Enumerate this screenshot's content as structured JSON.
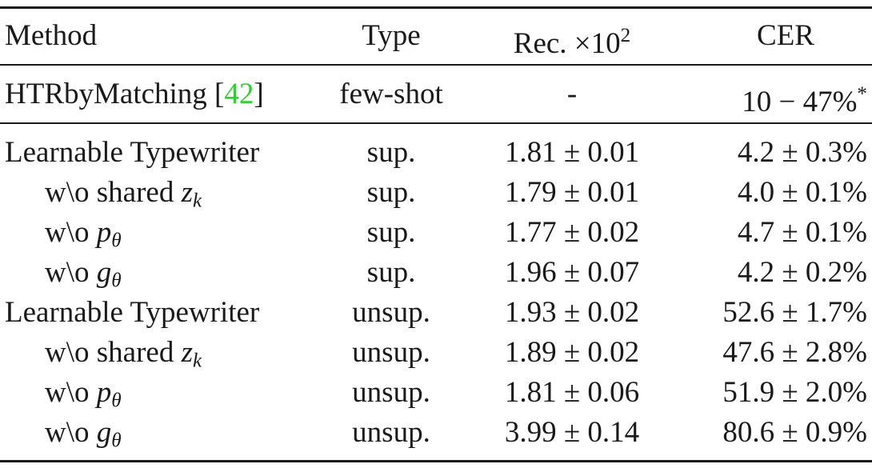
{
  "table": {
    "headers": {
      "method": "Method",
      "type": "Type",
      "rec_prefix": "Rec. ×10",
      "rec_exp": "2",
      "cer": "CER"
    },
    "baseline": {
      "method_name": "HTRbyMatching [",
      "ref": "42",
      "method_close": "]",
      "type": "few-shot",
      "rec": "-",
      "cer_main": "10 − 47%",
      "cer_mark": "*"
    },
    "rows": [
      {
        "method": "Learnable Typewriter",
        "type": "sup.",
        "rec": "1.81 ± 0.01",
        "cer": "4.2 ± 0.3%"
      },
      {
        "method_prefix": "w\\o shared ",
        "var": "z",
        "sub": "k",
        "type": "sup.",
        "rec": "1.79 ± 0.01",
        "cer": "4.0 ± 0.1%"
      },
      {
        "method_prefix": "w\\o ",
        "var": "p",
        "sub": "θ",
        "type": "sup.",
        "rec": "1.77 ± 0.02",
        "cer": "4.7 ± 0.1%"
      },
      {
        "method_prefix": "w\\o ",
        "var": "g",
        "sub": "θ",
        "type": "sup.",
        "rec": "1.96 ± 0.07",
        "cer": "4.2 ± 0.2%"
      },
      {
        "method": "Learnable Typewriter",
        "type": "unsup.",
        "rec": "1.93 ± 0.02",
        "cer": "52.6 ± 1.7%"
      },
      {
        "method_prefix": "w\\o shared ",
        "var": "z",
        "sub": "k",
        "type": "unsup.",
        "rec": "1.89 ± 0.02",
        "cer": "47.6 ± 2.8%"
      },
      {
        "method_prefix": "w\\o ",
        "var": "p",
        "sub": "θ",
        "type": "unsup.",
        "rec": "1.81 ± 0.06",
        "cer": "51.9 ± 2.0%"
      },
      {
        "method_prefix": "w\\o ",
        "var": "g",
        "sub": "θ",
        "type": "unsup.",
        "rec": "3.99 ± 0.14",
        "cer": "80.6 ± 0.9%"
      }
    ]
  }
}
